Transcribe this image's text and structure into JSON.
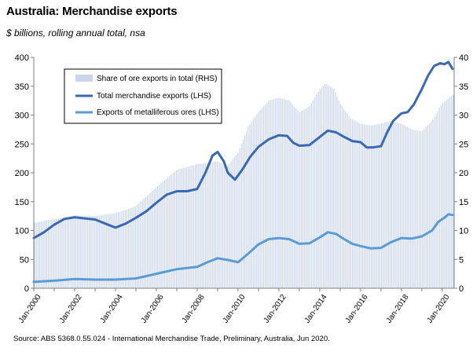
{
  "title": "Australia: Merchandise exports",
  "subtitle": "$ billions, rolling annual total, nsa",
  "source": "Source: ABS 5368.0.55.024 - International Merchandise Trade, Preliminary, Australia, Jun 2020.",
  "colors": {
    "share_bars": "#c9d5ea",
    "total_line": "#3a68b4",
    "ores_line": "#5b9bd5",
    "axis": "#7f7f7f"
  },
  "chart_data": {
    "type": "line",
    "title": "Australia: Merchandise exports",
    "subtitle": "$ billions, rolling annual total, nsa",
    "x_range": [
      "Jan-2000",
      "Jun-2020"
    ],
    "x_tick_labels": [
      "Jan-2000",
      "Jan-2002",
      "Jan-2004",
      "Jan-2006",
      "Jan-2008",
      "Jan-2010",
      "Jan-2012",
      "Jan-2014",
      "Jan-2016",
      "Jan-2018",
      "Jan-2020"
    ],
    "y_left": {
      "range": [
        0,
        400
      ],
      "ticks": [
        0,
        50,
        100,
        150,
        200,
        250,
        300,
        350,
        400
      ]
    },
    "y_right": {
      "range": [
        0,
        40
      ],
      "ticks": [
        0,
        5,
        10,
        15,
        20,
        25,
        30,
        35,
        40
      ]
    },
    "legend_position": "top-left",
    "grid": false,
    "series": [
      {
        "name": "Share of ore exports in total (RHS)",
        "type": "bar",
        "axis": "right",
        "points": [
          [
            2000.0,
            11.3
          ],
          [
            2001.0,
            12.0
          ],
          [
            2002.0,
            12.6
          ],
          [
            2003.0,
            12.5
          ],
          [
            2004.0,
            13.0
          ],
          [
            2005.0,
            14.2
          ],
          [
            2006.0,
            17.5
          ],
          [
            2007.0,
            20.5
          ],
          [
            2008.0,
            21.5
          ],
          [
            2009.0,
            22.0
          ],
          [
            2009.5,
            21.2
          ],
          [
            2010.0,
            23.5
          ],
          [
            2010.5,
            28.0
          ],
          [
            2011.0,
            30.5
          ],
          [
            2011.5,
            32.5
          ],
          [
            2012.0,
            33.0
          ],
          [
            2012.5,
            32.5
          ],
          [
            2013.0,
            30.5
          ],
          [
            2013.5,
            31.5
          ],
          [
            2014.0,
            34.5
          ],
          [
            2014.3,
            35.5
          ],
          [
            2014.7,
            34.5
          ],
          [
            2015.0,
            32.0
          ],
          [
            2015.5,
            29.5
          ],
          [
            2016.0,
            28.5
          ],
          [
            2016.5,
            28.2
          ],
          [
            2017.0,
            28.5
          ],
          [
            2017.5,
            29.0
          ],
          [
            2018.0,
            28.5
          ],
          [
            2018.5,
            27.5
          ],
          [
            2019.0,
            27.2
          ],
          [
            2019.5,
            29.0
          ],
          [
            2020.0,
            32.0
          ],
          [
            2020.5,
            33.5
          ]
        ]
      },
      {
        "name": "Total merchandise exports (LHS)",
        "type": "line",
        "axis": "left",
        "points": [
          [
            2000.0,
            87
          ],
          [
            2000.5,
            97
          ],
          [
            2001.0,
            110
          ],
          [
            2001.5,
            120
          ],
          [
            2002.0,
            123
          ],
          [
            2002.5,
            121
          ],
          [
            2003.0,
            119
          ],
          [
            2003.5,
            112
          ],
          [
            2004.0,
            105
          ],
          [
            2004.5,
            112
          ],
          [
            2005.0,
            122
          ],
          [
            2005.5,
            133
          ],
          [
            2006.0,
            148
          ],
          [
            2006.5,
            162
          ],
          [
            2007.0,
            168
          ],
          [
            2007.5,
            168
          ],
          [
            2008.0,
            172
          ],
          [
            2008.4,
            200
          ],
          [
            2008.75,
            230
          ],
          [
            2009.0,
            236
          ],
          [
            2009.3,
            220
          ],
          [
            2009.5,
            200
          ],
          [
            2009.85,
            188
          ],
          [
            2010.2,
            205
          ],
          [
            2010.6,
            228
          ],
          [
            2011.0,
            245
          ],
          [
            2011.5,
            258
          ],
          [
            2012.0,
            265
          ],
          [
            2012.4,
            264
          ],
          [
            2012.7,
            252
          ],
          [
            2013.0,
            247
          ],
          [
            2013.5,
            248
          ],
          [
            2014.0,
            262
          ],
          [
            2014.4,
            273
          ],
          [
            2014.8,
            270
          ],
          [
            2015.2,
            262
          ],
          [
            2015.6,
            255
          ],
          [
            2016.0,
            253
          ],
          [
            2016.3,
            244
          ],
          [
            2016.6,
            244
          ],
          [
            2017.0,
            246
          ],
          [
            2017.3,
            270
          ],
          [
            2017.6,
            290
          ],
          [
            2018.0,
            303
          ],
          [
            2018.3,
            305
          ],
          [
            2018.6,
            318
          ],
          [
            2019.0,
            345
          ],
          [
            2019.3,
            368
          ],
          [
            2019.6,
            385
          ],
          [
            2019.9,
            390
          ],
          [
            2020.1,
            388
          ],
          [
            2020.3,
            392
          ],
          [
            2020.5,
            380
          ]
        ]
      },
      {
        "name": "Exports of metalliferous ores (LHS)",
        "type": "line",
        "axis": "left",
        "points": [
          [
            2000.0,
            11
          ],
          [
            2001.0,
            13
          ],
          [
            2002.0,
            16
          ],
          [
            2003.0,
            15
          ],
          [
            2004.0,
            15
          ],
          [
            2005.0,
            17
          ],
          [
            2006.0,
            25
          ],
          [
            2007.0,
            33
          ],
          [
            2008.0,
            37
          ],
          [
            2008.5,
            45
          ],
          [
            2009.0,
            52
          ],
          [
            2009.5,
            49
          ],
          [
            2010.0,
            45
          ],
          [
            2010.5,
            60
          ],
          [
            2011.0,
            76
          ],
          [
            2011.5,
            85
          ],
          [
            2012.0,
            87
          ],
          [
            2012.5,
            85
          ],
          [
            2013.0,
            77
          ],
          [
            2013.5,
            78
          ],
          [
            2014.0,
            88
          ],
          [
            2014.4,
            97
          ],
          [
            2014.8,
            94
          ],
          [
            2015.2,
            85
          ],
          [
            2015.6,
            77
          ],
          [
            2016.0,
            73
          ],
          [
            2016.5,
            69
          ],
          [
            2017.0,
            70
          ],
          [
            2017.5,
            80
          ],
          [
            2018.0,
            87
          ],
          [
            2018.5,
            86
          ],
          [
            2019.0,
            90
          ],
          [
            2019.5,
            100
          ],
          [
            2019.8,
            115
          ],
          [
            2020.1,
            122
          ],
          [
            2020.3,
            128
          ],
          [
            2020.5,
            127
          ]
        ]
      }
    ]
  }
}
